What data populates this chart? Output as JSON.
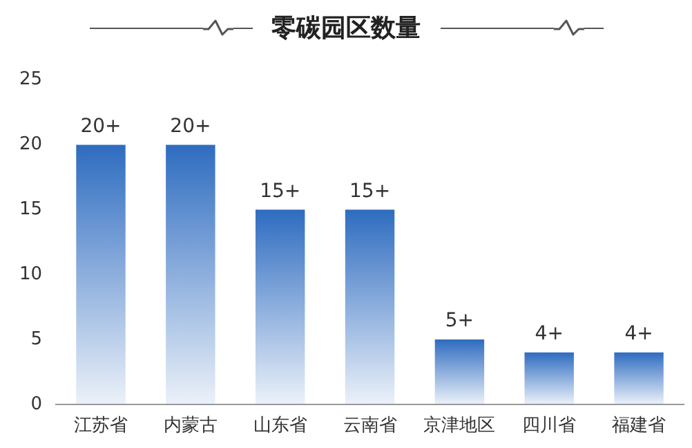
{
  "chart_data": {
    "type": "bar",
    "title": "零碳园区数量",
    "categories": [
      "江苏省",
      "内蒙古",
      "山东省",
      "云南省",
      "京津地区",
      "四川省",
      "福建省"
    ],
    "values": [
      20,
      20,
      15,
      15,
      5,
      4,
      4
    ],
    "value_labels": [
      "20+",
      "20+",
      "15+",
      "15+",
      "5+",
      "4+",
      "4+"
    ],
    "color": "#2e6cc0",
    "ylim": [
      0,
      25
    ],
    "yticks": [
      0,
      5,
      10,
      15,
      20,
      25
    ],
    "grid": false,
    "legend": false
  }
}
